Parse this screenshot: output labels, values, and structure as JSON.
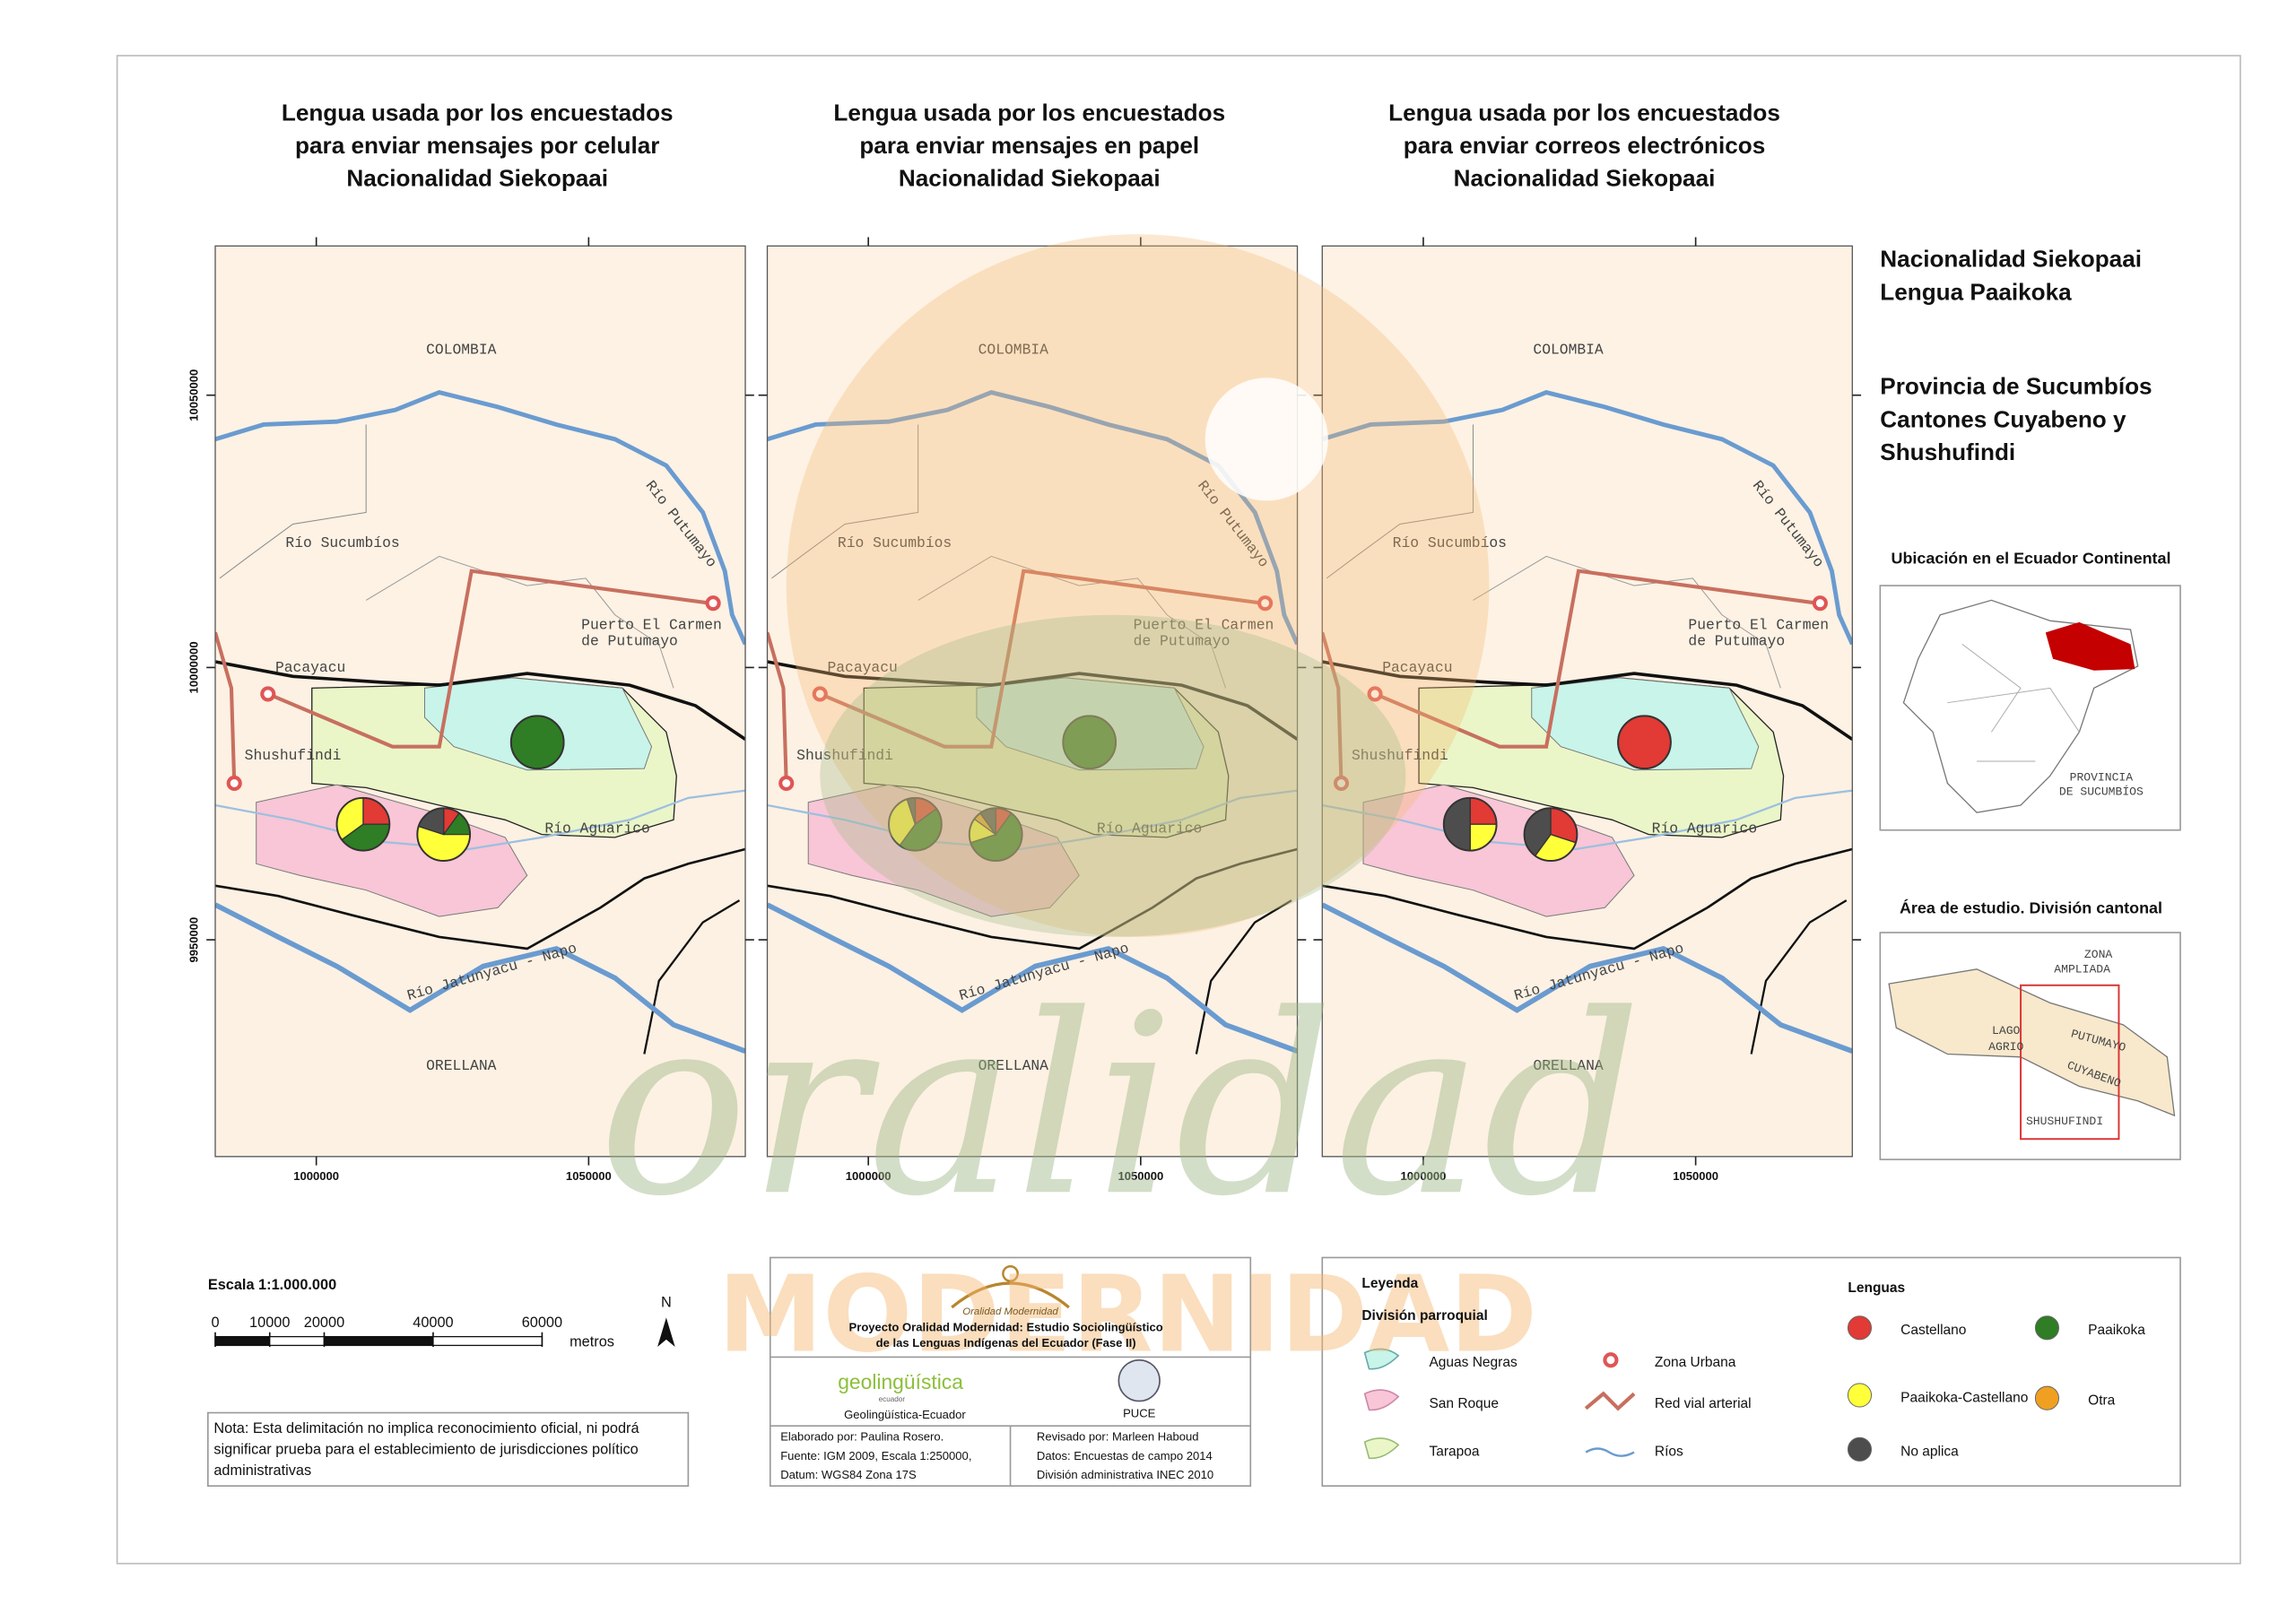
{
  "header": {
    "titles": [
      [
        "Lengua usada por los encuestados",
        "para enviar mensajes por celular",
        "Nacionalidad Siekopaai"
      ],
      [
        "Lengua usada por los encuestados",
        "para enviar mensajes en papel",
        "Nacionalidad Siekopaai"
      ],
      [
        "Lengua usada por los encuestados",
        "para enviar correos electrónicos",
        "Nacionalidad Siekopaai"
      ]
    ]
  },
  "side": {
    "lines": [
      "Nacionalidad Siekopaai",
      "Lengua Paaikoka"
    ],
    "province": [
      "Provincia de Sucumbíos",
      "Cantones Cuyabeno y",
      "Shushufindi"
    ],
    "inset1": {
      "title": "Ubicación en el Ecuador Continental",
      "label": [
        "PROVINCIA",
        "DE SUCUMBÍOS"
      ]
    },
    "inset2": {
      "title": "Área de estudio. División cantonal",
      "labels": [
        "ZONA",
        "AMPLIADA",
        "LAGO",
        "AGRIO",
        "PUTUMAYO",
        "CUYABENO",
        "SHUSHUFINDI"
      ]
    }
  },
  "map_axes": {
    "xlim": [
      981450,
      1078760
    ],
    "ylim": [
      9910200,
      10077400
    ],
    "xticks": [
      1000000,
      1050000
    ],
    "yticks": [
      10050000,
      10000000,
      9950000
    ]
  },
  "map_labels": [
    [
      "COLOMBIA"
    ],
    [
      "Río Sucumbíos"
    ],
    [
      "Río Putumayo"
    ],
    [
      "Puerto El Carmen",
      "de Putumayo"
    ],
    [
      "Pacayacu"
    ],
    [
      "Shushufindi"
    ],
    [
      "Río Aguarico"
    ],
    [
      "Río Jatunyacu - Napo"
    ],
    [
      "ORELLANA"
    ]
  ],
  "languages": [
    {
      "name": "Castellano",
      "color": "#e23a35"
    },
    {
      "name": "Paaikoka",
      "color": "#2f7d24"
    },
    {
      "name": "Paaikoka-Castellano",
      "color": "#ffff3a"
    },
    {
      "name": "Otra",
      "color": "#f0a020"
    },
    {
      "name": "No aplica",
      "color": "#4d4d4d"
    }
  ],
  "maps": [
    {
      "pies": [
        {
          "values": [
            0,
            100,
            0,
            0,
            0
          ]
        },
        {
          "values": [
            25,
            40,
            35,
            0,
            0
          ]
        },
        {
          "values": [
            10,
            15,
            55,
            0,
            20
          ]
        }
      ]
    },
    {
      "pies": [
        {
          "values": [
            0,
            100,
            0,
            0,
            0
          ]
        },
        {
          "values": [
            15,
            45,
            35,
            0,
            5
          ]
        },
        {
          "values": [
            10,
            60,
            15,
            5,
            10
          ]
        }
      ]
    },
    {
      "pies": [
        {
          "values": [
            100,
            0,
            0,
            0,
            0
          ]
        },
        {
          "values": [
            25,
            0,
            25,
            0,
            50
          ]
        },
        {
          "values": [
            30,
            0,
            30,
            0,
            40
          ]
        }
      ]
    }
  ],
  "scale_bar": {
    "title": "Escala 1:1.000.000",
    "ticks": [
      0,
      10000,
      20000,
      40000,
      60000
    ],
    "unit": "metros",
    "north": "N"
  },
  "note": [
    "Nota: Esta delimitación no implica reconocimiento oficial, ni podrá",
    "significar prueba para el establecimiento de jurisdicciones político",
    "administrativas"
  ],
  "credits": {
    "logo": "Oralidad Modernidad",
    "project": [
      "Proyecto Oralidad Modernidad: Estudio Sociolingüístico",
      "de las Lenguas Indígenas del Ecuador  (Fase II)"
    ],
    "geo_logo": "geolingüística",
    "geo_sub": "ecuador",
    "geo_name": "Geolingüística-Ecuador",
    "puce": "PUCE",
    "left": [
      "Elaborado por: Paulina Rosero.",
      "Fuente: IGM 2009, Escala 1:250000,",
      "Datum: WGS84 Zona 17S"
    ],
    "right": [
      "Revisado por: Marleen Haboud",
      "Datos: Encuestas de campo 2014",
      "División administrativa INEC 2010"
    ]
  },
  "legend": {
    "title": "Leyenda",
    "division": "División parroquial",
    "parishes": [
      "Aguas Negras",
      "San Roque",
      "Tarapoa"
    ],
    "others": [
      "Zona Urbana",
      "Red vial arterial",
      "Ríos"
    ],
    "languages_title": "Lenguas"
  },
  "watermark": {
    "script": "oralidad",
    "text": "MODERNIDAD"
  }
}
